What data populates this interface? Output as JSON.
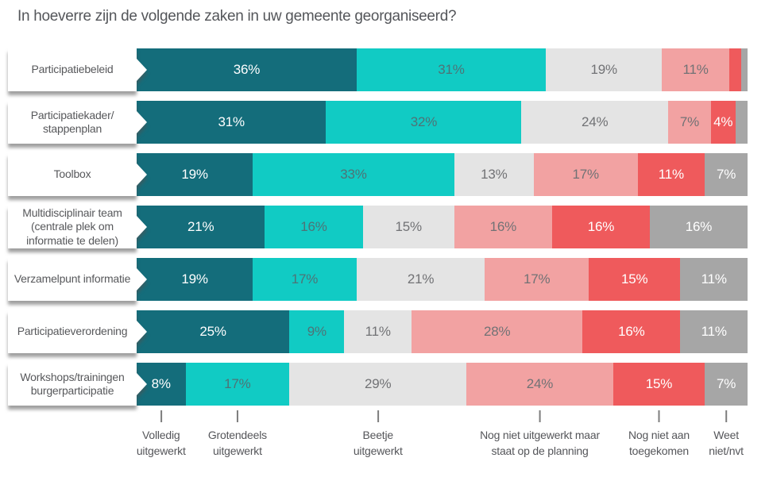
{
  "title": "In hoeverre zijn de volgende zaken in uw gemeente georganiseerd?",
  "colors": {
    "background": "#ffffff",
    "title_text": "#54565a",
    "row_label_text": "#57585b",
    "legend_text": "#55565a",
    "tick": "#7d7d7d",
    "label_box_shadow": "rgba(80,80,80,0.55)"
  },
  "chart_data": {
    "type": "bar",
    "orientation": "horizontal",
    "stacked": true,
    "unit": "%",
    "xlim": [
      0,
      100
    ],
    "grid": false,
    "legend_position": "bottom",
    "data_label_min_value": 4,
    "title": "In hoeverre zijn de volgende zaken in uw gemeente georganiseerd?",
    "categories": [
      "Participatiebeleid",
      "Participatiekader/\nstappenplan",
      "Toolbox",
      "Multidisciplinair team\n(centrale plek om\ninformatie te delen)",
      "Verzamelpunt informatie",
      "Participatieverordening",
      "Workshops/trainingen\nburgerparticipatie"
    ],
    "series": [
      {
        "name": "Volledig uitgewerkt",
        "color": "#146d7b",
        "label_color": "#ffffff",
        "values": [
          36,
          31,
          19,
          21,
          19,
          25,
          8
        ]
      },
      {
        "name": "Grotendeels uitgewerkt",
        "color": "#11cbc4",
        "label_color": "#4e7376",
        "values": [
          31,
          32,
          33,
          16,
          17,
          9,
          17
        ]
      },
      {
        "name": "Beetje uitgewerkt",
        "color": "#e4e4e4",
        "label_color": "#717275",
        "values": [
          19,
          24,
          13,
          15,
          21,
          11,
          29
        ]
      },
      {
        "name": "Nog niet uitgewerkt maar staat op de planning",
        "color": "#f2a2a2",
        "label_color": "#717275",
        "values": [
          11,
          7,
          17,
          16,
          17,
          28,
          24
        ]
      },
      {
        "name": "Nog niet aan toegekomen",
        "color": "#ef5a5c",
        "label_color": "#ffffff",
        "values": [
          2,
          4,
          11,
          16,
          15,
          16,
          15
        ]
      },
      {
        "name": "Weet niet/nvt",
        "color": "#a6a6a6",
        "label_color": "#ffffff",
        "values": [
          1,
          2,
          7,
          16,
          11,
          11,
          7
        ]
      }
    ],
    "legend_lines": [
      "Volledig\nuitgewerkt",
      "Grotendeels\nuitgewerkt",
      "Beetje\nuitgewerkt",
      "Nog niet uitgewerkt maar\nstaat op de planning",
      "Nog niet aan\ntoegekomen",
      "Weet\nniet/nvt"
    ]
  }
}
